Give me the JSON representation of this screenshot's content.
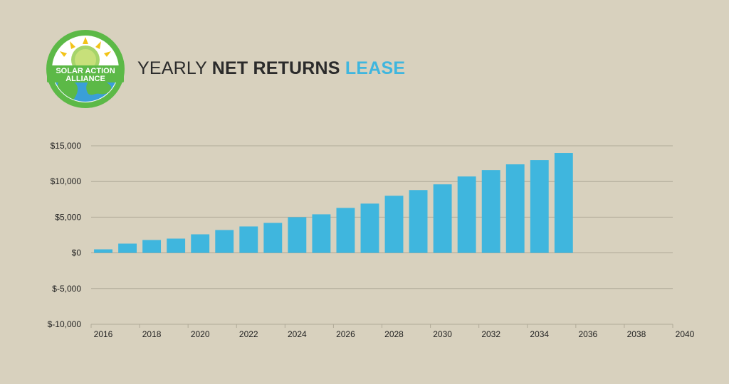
{
  "header": {
    "title_part1": "YEARLY ",
    "title_part2": "NET RETURNS",
    "title_part3": "LEASE",
    "logo_line1": "SOLAR ACTION",
    "logo_line2": "ALLIANCE"
  },
  "colors": {
    "background": "#d8d1be",
    "bar": "#3fb6de",
    "accent": "#3fb6de",
    "gridline": "#b0aa98",
    "logo_green": "#5cb947",
    "logo_blue": "#3a9fd8"
  },
  "chart_data": {
    "type": "bar",
    "title": "YEARLY NET RETURNS LEASE",
    "xlabel": "",
    "ylabel": "",
    "ylim": [
      -10000,
      15000
    ],
    "yticks": [
      15000,
      10000,
      5000,
      0,
      -5000,
      -10000
    ],
    "ytick_labels": [
      "$15,000",
      "$10,000",
      "$5,000",
      "$0",
      "$-5,000",
      "$-10,000"
    ],
    "xlim": [
      2016,
      2040
    ],
    "xtick_labels": [
      "2016",
      "2018",
      "2020",
      "2022",
      "2024",
      "2026",
      "2028",
      "2030",
      "2032",
      "2034",
      "2036",
      "2038",
      "2040"
    ],
    "categories": [
      2016,
      2017,
      2018,
      2019,
      2020,
      2021,
      2022,
      2023,
      2024,
      2025,
      2026,
      2027,
      2028,
      2029,
      2030,
      2031,
      2032,
      2033,
      2034,
      2035
    ],
    "values": [
      500,
      1300,
      1800,
      2000,
      2600,
      3200,
      3700,
      4200,
      5000,
      5400,
      6300,
      6900,
      8000,
      8800,
      9600,
      10700,
      11600,
      12400,
      13000,
      14000
    ],
    "grid": true,
    "legend": "none"
  }
}
